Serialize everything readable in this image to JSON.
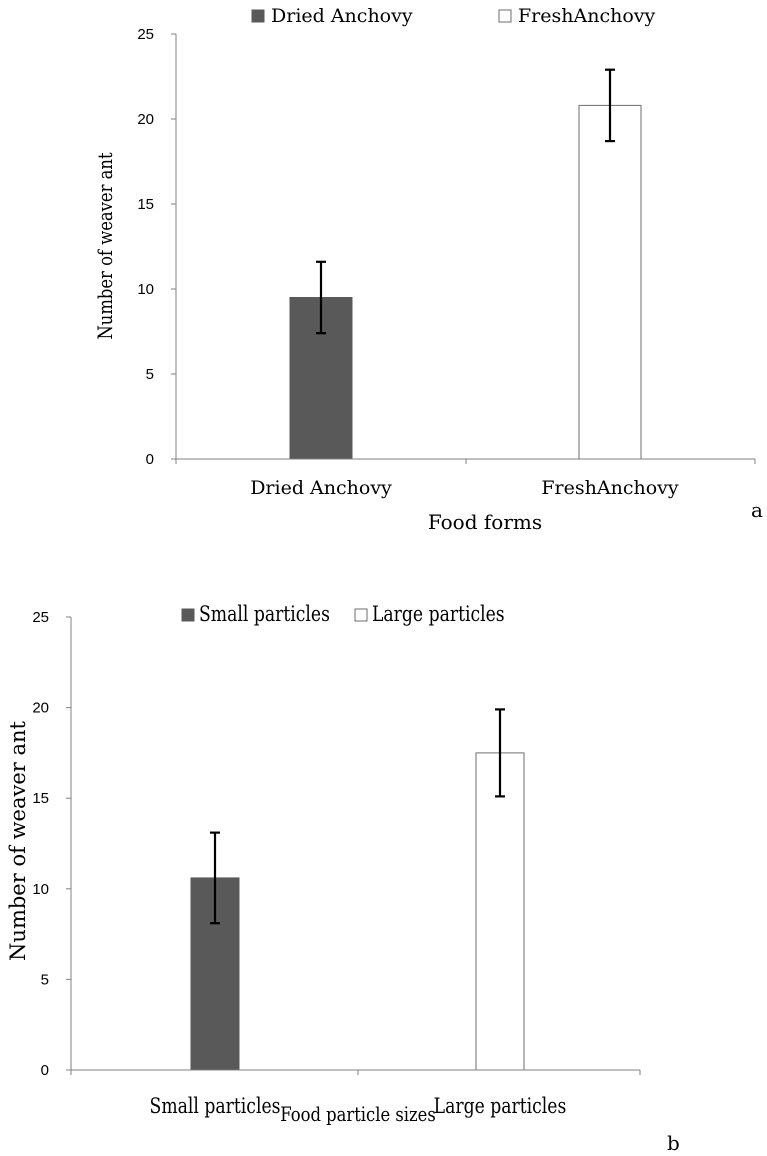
{
  "chart_data": [
    {
      "type": "bar",
      "panel_label": "a",
      "categories": [
        "Dried Anchovy",
        "FreshAnchovy"
      ],
      "series": [
        {
          "name": "Dried Anchovy",
          "values": [
            9.5,
            null
          ],
          "error": [
            2.1,
            null
          ],
          "color": "#595959"
        },
        {
          "name": "FreshAnchovy",
          "values": [
            null,
            20.8
          ],
          "error": [
            null,
            2.1
          ],
          "color": "#ffffff"
        }
      ],
      "xlabel": "Food forms",
      "ylabel": "Number of weaver ant",
      "ylim": [
        0,
        25
      ],
      "yticks": [
        0,
        5,
        10,
        15,
        20,
        25
      ],
      "grid": false,
      "legend": "top"
    },
    {
      "type": "bar",
      "panel_label": "b",
      "categories": [
        "Small particles",
        "Large particles"
      ],
      "series": [
        {
          "name": "Small particles",
          "values": [
            10.6,
            null
          ],
          "error": [
            2.5,
            null
          ],
          "color": "#595959"
        },
        {
          "name": "Large particles",
          "values": [
            null,
            17.5
          ],
          "error": [
            null,
            2.4
          ],
          "color": "#ffffff"
        }
      ],
      "xlabel": "Food particle sizes",
      "ylabel": "Number of weaver ant",
      "ylim": [
        0,
        25
      ],
      "yticks": [
        0,
        5,
        10,
        15,
        20,
        25
      ],
      "grid": false,
      "legend": "top"
    }
  ]
}
